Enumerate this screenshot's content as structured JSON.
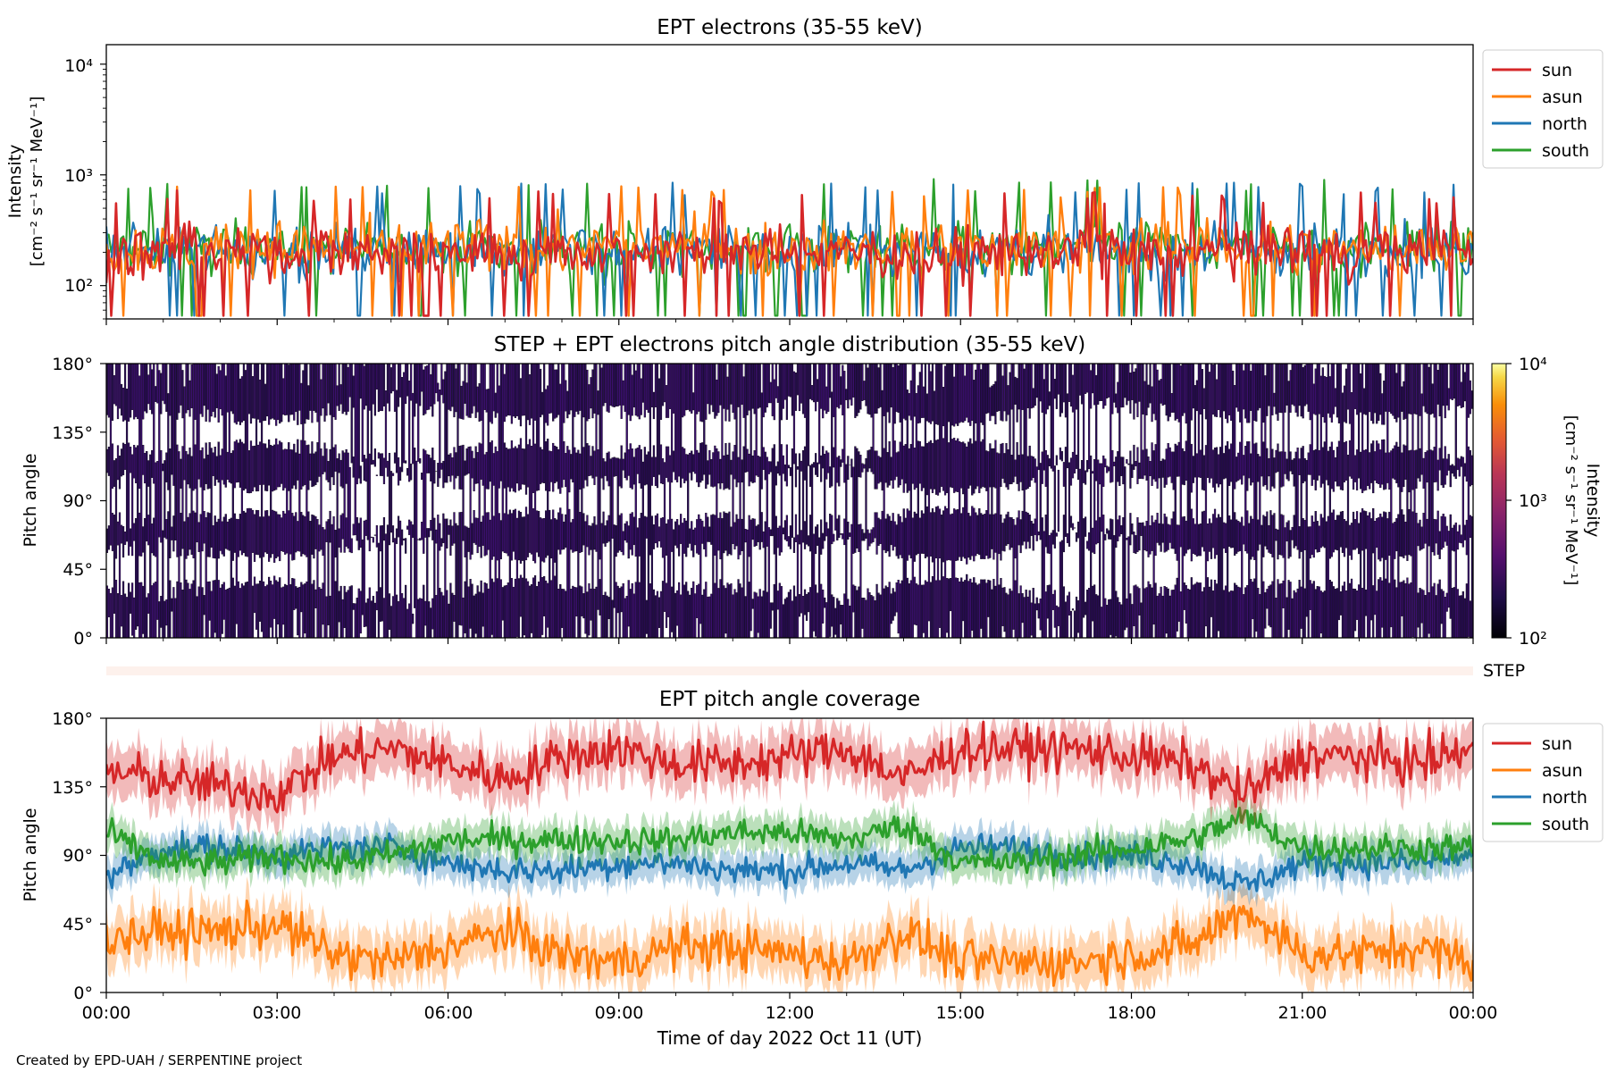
{
  "figure": {
    "footer": "Created by EPD-UAH / SERPENTINE project",
    "xlabel": "Time of day 2022 Oct 11 (UT)",
    "time_ticks": [
      "00:00",
      "03:00",
      "06:00",
      "09:00",
      "12:00",
      "15:00",
      "18:00",
      "21:00",
      "00:00"
    ]
  },
  "panel1": {
    "title": "EPT electrons (35-55 keV)",
    "ylabel_line1": "Intensity",
    "ylabel_line2": "[cm⁻² s⁻¹ sr⁻¹ MeV⁻¹]",
    "ytick_labels": [
      "10⁴",
      "10³",
      "10²"
    ]
  },
  "panel2": {
    "title": "STEP + EPT electrons pitch angle distribution (35-55 keV)",
    "ylabel": "Pitch angle",
    "ytick_labels": [
      "180°",
      "135°",
      "90°",
      "45°",
      "0°"
    ],
    "colorbar_label_line1": "Intensity",
    "colorbar_label_line2": "[cm⁻² s⁻¹ sr⁻¹ MeV⁻¹]",
    "colorbar_ticks": [
      "10⁴",
      "10³",
      "10²"
    ]
  },
  "step_strip": {
    "label": "STEP"
  },
  "panel3": {
    "title": "EPT pitch angle coverage",
    "ylabel": "Pitch angle",
    "ytick_labels": [
      "180°",
      "135°",
      "90°",
      "45°",
      "0°"
    ]
  },
  "legend": {
    "sun": "sun",
    "asun": "asun",
    "north": "north",
    "south": "south"
  },
  "colors": {
    "sun": "#d62728",
    "asun": "#ff7f0e",
    "north": "#1f77b4",
    "south": "#2ca02c",
    "pad_fill": "#3b0f6f",
    "pad_edge": "#000004",
    "step_strip": "#fdf1ec"
  },
  "chart_data": [
    {
      "type": "line",
      "title": "EPT electrons (35-55 keV)",
      "xlabel": "Time of day 2022 Oct 11 (UT)",
      "ylabel": "Intensity [cm⁻² s⁻¹ sr⁻¹ MeV⁻¹]",
      "yscale": "log",
      "ylim": [
        50,
        15000
      ],
      "xlim": [
        "2022-10-11 00:00",
        "2022-10-12 00:00"
      ],
      "legend_position": "outside-right",
      "series": [
        {
          "name": "sun",
          "typical_range": [
            60,
            550
          ],
          "median": 200
        },
        {
          "name": "asun",
          "typical_range": [
            60,
            600
          ],
          "median": 220
        },
        {
          "name": "north",
          "typical_range": [
            60,
            650
          ],
          "median": 210
        },
        {
          "name": "south",
          "typical_range": [
            60,
            700
          ],
          "median": 220
        }
      ]
    },
    {
      "type": "heatmap",
      "title": "STEP + EPT electrons pitch angle distribution (35-55 keV)",
      "ylabel": "Pitch angle",
      "ylim": [
        0,
        180
      ],
      "colorbar": {
        "scale": "log",
        "range": [
          100,
          10000
        ],
        "label": "Intensity [cm⁻² s⁻¹ sr⁻¹ MeV⁻¹]"
      },
      "typical_intensity": 200,
      "white_gaps_centered_deg": [
        135,
        90,
        45
      ]
    },
    {
      "type": "area",
      "title": "EPT pitch angle coverage",
      "xlabel": "Time of day 2022 Oct 11 (UT)",
      "ylabel": "Pitch angle",
      "ylim": [
        0,
        180
      ],
      "legend_position": "outside-right",
      "x": [
        "00:00",
        "01:00",
        "02:00",
        "03:00",
        "04:00",
        "05:00",
        "06:00",
        "07:00",
        "08:00",
        "09:00",
        "10:00",
        "11:00",
        "12:00",
        "13:00",
        "14:00",
        "15:00",
        "16:00",
        "17:00",
        "18:00",
        "19:00",
        "20:00",
        "21:00",
        "22:00",
        "23:00",
        "24:00"
      ],
      "series": [
        {
          "name": "sun",
          "values": [
            145,
            140,
            135,
            130,
            155,
            160,
            150,
            140,
            155,
            160,
            150,
            150,
            155,
            160,
            140,
            160,
            160,
            160,
            155,
            150,
            130,
            155,
            155,
            150,
            160
          ]
        },
        {
          "name": "asun",
          "values": [
            35,
            40,
            40,
            45,
            25,
            20,
            30,
            40,
            25,
            20,
            30,
            30,
            25,
            20,
            40,
            20,
            20,
            20,
            25,
            30,
            55,
            25,
            25,
            30,
            20
          ]
        },
        {
          "name": "north",
          "values": [
            75,
            95,
            95,
            90,
            95,
            95,
            85,
            80,
            80,
            85,
            85,
            80,
            80,
            85,
            80,
            95,
            95,
            90,
            90,
            85,
            70,
            85,
            85,
            85,
            90
          ]
        },
        {
          "name": "south",
          "values": [
            105,
            85,
            85,
            90,
            85,
            90,
            100,
            100,
            100,
            100,
            100,
            105,
            105,
            100,
            110,
            85,
            85,
            90,
            95,
            100,
            115,
            95,
            95,
            95,
            95
          ]
        }
      ]
    }
  ]
}
